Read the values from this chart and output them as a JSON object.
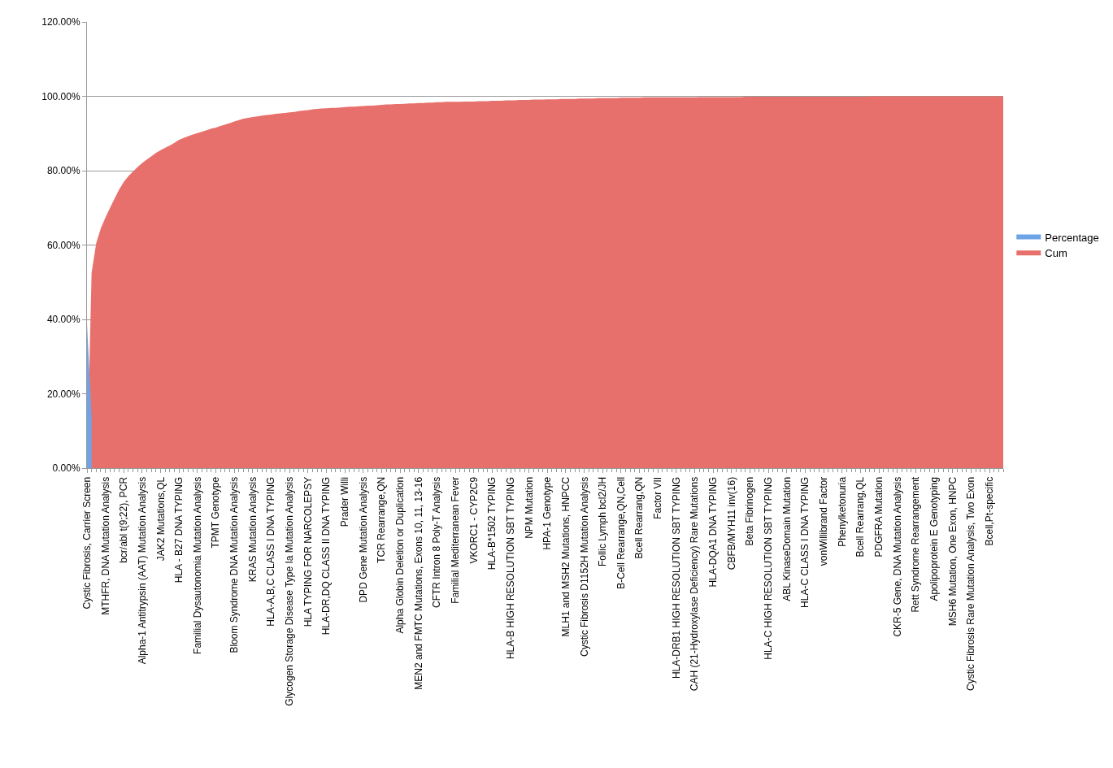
{
  "chart_data": {
    "type": "area",
    "categories": [
      "Cystic Fibrosis, Carrier Screen",
      null,
      null,
      null,
      "MTHFR, DNA Mutation Analysis",
      null,
      null,
      null,
      "bcr/abl t(9;22), PCR",
      null,
      null,
      null,
      "Alpha-1 Antitrypsin (AAT) Mutation Analysis",
      null,
      null,
      null,
      "JAK2 Mutations,QL",
      null,
      null,
      null,
      "HLA - B27 DNA TYPING",
      null,
      null,
      null,
      "Familial Dysautonomia Mutation Analysis",
      null,
      null,
      null,
      "TPMT Genotype",
      null,
      null,
      null,
      "Bloom Syndrome DNA Mutation Analysis",
      null,
      null,
      null,
      "KRAS Mutation Analysis",
      null,
      null,
      null,
      "HLA-A,B,C CLASS I DNA TYPING",
      null,
      null,
      null,
      "Glycogen Storage Disease Type Ia Mutation Analysis",
      null,
      null,
      null,
      "HLA TYPING FOR NARCOLEPSY",
      null,
      null,
      null,
      "HLA-DR,DQ CLASS II DNA TYPING",
      null,
      null,
      null,
      "Prader Willi",
      null,
      null,
      null,
      "DPD Gene Mutation Analysis",
      null,
      null,
      null,
      "TCR Rearrange,QN",
      null,
      null,
      null,
      "Alpha Globin Deletion or Duplication",
      null,
      null,
      null,
      "MEN2 and FMTC Mutations, Exons 10, 11, 13-16",
      null,
      null,
      null,
      "CFTR Intron 8 Poly-T Analysis",
      null,
      null,
      null,
      "Familial Mediterranean Fever",
      null,
      null,
      null,
      "VKORC1 - CYP2C9",
      null,
      null,
      null,
      "HLA-B*1502 TYPING",
      null,
      null,
      null,
      "HLA-B HIGH RESOLUTION SBT TYPING",
      null,
      null,
      null,
      "NPM Mutation",
      null,
      null,
      null,
      "HPA-1 Genotype",
      null,
      null,
      null,
      "MLH1 and MSH2 Mutations, HNPCC",
      null,
      null,
      null,
      "Cystic Fibrosis D1152H Mutation Analysis",
      null,
      null,
      null,
      "Follic Lymph bcl2/JH",
      null,
      null,
      null,
      "B-Cell Rearrange,QN,Cell",
      null,
      null,
      null,
      "Bcell Rearrang,QN",
      null,
      null,
      null,
      "Factor VII",
      null,
      null,
      null,
      "HLA-DRB1 HIGH RESOLUTION SBT TYPING",
      null,
      null,
      null,
      "CAH (21-Hydroxylase Deficiency) Rare Mutations",
      null,
      null,
      null,
      "HLA-DQA1 DNA TYPING",
      null,
      null,
      null,
      "CBFB/MYH11 inv(16)",
      null,
      null,
      null,
      "Beta Fibrinogen",
      null,
      null,
      null,
      "HLA-C HIGH RESOLUTION SBT TYPING",
      null,
      null,
      null,
      "ABL KinaseDomain Mutation",
      null,
      null,
      null,
      "HLA-C CLASS I DNA TYPING",
      null,
      null,
      null,
      "vonWillibrand Factor",
      null,
      null,
      null,
      "Phenylketonuria",
      null,
      null,
      null,
      "Bcell Rearrang,QL",
      null,
      null,
      null,
      "PDGFRA Mutation",
      null,
      null,
      null,
      "CKR-5 Gene, DNA Mutation Analysis",
      null,
      null,
      null,
      "Rett Syndrome Rearrangement",
      null,
      null,
      null,
      "Apolipoprotein E Genotyping",
      null,
      null,
      null,
      "MSH6 Mutation, One Exon, HNPC",
      null,
      null,
      null,
      "Cystic Fibrosis Rare Mutation Analysis, Two Exon",
      null,
      null,
      null,
      "Bcell,Pt-specific",
      null,
      null,
      null
    ],
    "series": [
      {
        "name": "Percentage",
        "color": "#6ea3e8",
        "values": [
          38.9,
          13.5,
          null,
          null,
          null,
          null,
          null,
          null,
          null,
          null,
          null,
          null,
          null,
          null,
          null,
          null,
          null,
          null,
          null,
          null,
          null,
          null,
          null,
          null,
          null,
          null,
          null,
          null,
          null,
          null,
          null,
          null,
          null,
          null,
          null,
          null,
          null,
          null,
          null,
          null,
          null,
          null,
          null,
          null,
          null,
          null,
          null,
          null,
          null,
          null,
          null,
          null,
          null,
          null,
          null,
          null,
          null,
          null,
          null,
          null,
          null,
          null,
          null,
          null,
          null,
          null,
          null,
          null,
          null,
          null,
          null,
          null,
          null,
          null,
          null,
          null,
          null,
          null,
          null,
          null,
          null,
          null,
          null,
          null,
          null,
          null,
          null,
          null,
          null,
          null,
          null,
          null,
          null,
          null,
          null,
          null,
          null,
          null,
          null,
          null,
          null,
          null,
          null,
          null,
          null,
          null,
          null,
          null,
          null,
          null,
          null,
          null,
          null,
          null,
          null,
          null,
          null,
          null,
          null,
          null,
          null,
          null,
          null,
          null,
          null,
          null,
          null,
          null,
          null,
          null,
          null,
          null,
          null,
          null,
          null,
          null,
          null,
          null,
          null,
          null,
          null,
          null,
          null,
          null,
          null,
          null,
          null,
          null,
          null,
          null,
          null,
          null,
          null,
          null,
          null,
          null,
          null,
          null,
          null,
          null,
          null,
          null,
          null,
          null,
          null,
          null,
          null,
          null,
          null,
          null,
          null,
          null,
          null,
          null,
          null,
          null,
          null,
          null,
          null,
          null,
          null,
          null,
          null,
          null,
          null,
          null,
          null,
          null,
          null,
          null,
          null,
          null,
          null,
          null,
          null,
          null,
          null,
          null,
          null,
          null
        ]
      },
      {
        "name": "Cum",
        "color": "#e8706c",
        "values": [
          0,
          52.5,
          60.5,
          64.5,
          67.4,
          70,
          72.5,
          75,
          77,
          78.5,
          79.8,
          81,
          82.1,
          83,
          83.9,
          84.8,
          85.5,
          86.2,
          86.8,
          87.5,
          88.3,
          88.8,
          89.3,
          89.7,
          90.1,
          90.5,
          90.9,
          91.3,
          91.6,
          92,
          92.4,
          92.8,
          93.2,
          93.6,
          94,
          94.2,
          94.4,
          94.6,
          94.8,
          95,
          95.1,
          95.3,
          95.4,
          95.5,
          95.7,
          95.8,
          96,
          96.2,
          96.3,
          96.5,
          96.6,
          96.7,
          96.8,
          96.9,
          96.9,
          97,
          97.1,
          97.2,
          97.2,
          97.3,
          97.4,
          97.5,
          97.5,
          97.6,
          97.7,
          97.8,
          97.8,
          97.9,
          97.9,
          98,
          98.1,
          98.1,
          98.2,
          98.2,
          98.3,
          98.3,
          98.4,
          98.4,
          98.5,
          98.5,
          98.5,
          98.5,
          98.6,
          98.6,
          98.6,
          98.7,
          98.7,
          98.7,
          98.8,
          98.8,
          98.8,
          98.9,
          98.9,
          98.9,
          99,
          99,
          99,
          99.1,
          99.1,
          99.1,
          99.2,
          99.2,
          99.2,
          99.3,
          99.3,
          99.3,
          99.3,
          99.4,
          99.4,
          99.4,
          99.4,
          99.5,
          99.5,
          99.5,
          99.5,
          99.5,
          99.6,
          99.6,
          99.6,
          99.6,
          99.6,
          99.7,
          99.7,
          99.7,
          99.7,
          99.7,
          99.7,
          99.7,
          99.7,
          99.7,
          99.7,
          99.7,
          99.7,
          99.8,
          99.8,
          99.8,
          99.8,
          99.8,
          99.8,
          99.8,
          99.8,
          99.8,
          99.8,
          99.9,
          99.9,
          99.9,
          99.9,
          99.9,
          99.9,
          99.9,
          99.9,
          99.9,
          99.9,
          99.9,
          99.9,
          99.9,
          99.9,
          99.9,
          99.9,
          99.9,
          99.9,
          99.9,
          99.9,
          99.9,
          99.9,
          99.9,
          99.9,
          99.9,
          99.9,
          99.9,
          100,
          100,
          100,
          100,
          100,
          100,
          100,
          100,
          100,
          100,
          100,
          100,
          100,
          100,
          100,
          100,
          100,
          100,
          100,
          100,
          100,
          100,
          100,
          100,
          100,
          100,
          100,
          100,
          100,
          100
        ]
      }
    ],
    "ylim": [
      0,
      120
    ],
    "yticks": [
      {
        "value": 0,
        "label": "0.00%"
      },
      {
        "value": 20,
        "label": "20.00%"
      },
      {
        "value": 40,
        "label": "40.00%"
      },
      {
        "value": 60,
        "label": "60.00%"
      },
      {
        "value": 80,
        "label": "80.00%"
      },
      {
        "value": 100,
        "label": "100.00%"
      },
      {
        "value": 120,
        "label": "120.00%"
      }
    ],
    "grid": "y",
    "legend": "right"
  }
}
